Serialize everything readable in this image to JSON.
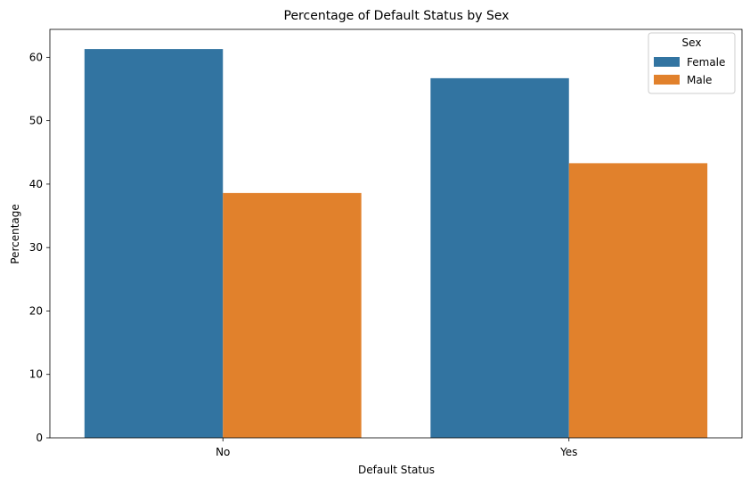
{
  "chart_data": {
    "type": "bar",
    "title": "Percentage of Default Status by Sex",
    "xlabel": "Default Status",
    "ylabel": "Percentage",
    "categories": [
      "No",
      "Yes"
    ],
    "series": [
      {
        "name": "Female",
        "values": [
          61.3,
          56.7
        ],
        "color": "#3274a1"
      },
      {
        "name": "Male",
        "values": [
          38.6,
          43.3
        ],
        "color": "#e1812c"
      }
    ],
    "ylim": [
      0,
      64.4
    ],
    "yticks": [
      0,
      10,
      20,
      30,
      40,
      50,
      60
    ],
    "legend": {
      "title": "Sex",
      "position": "top-right"
    },
    "grid": false
  }
}
